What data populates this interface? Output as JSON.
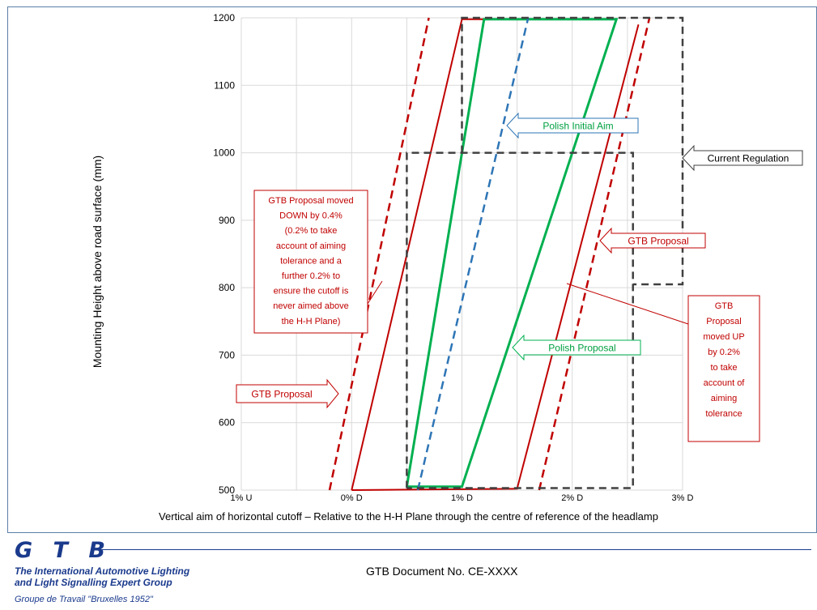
{
  "chart_data": {
    "type": "line",
    "xlabel": "Vertical aim of horizontal cutoff – Relative to the H-H Plane through the centre of reference of the headlamp",
    "ylabel": "Mounting Height above road surface (mm)",
    "xlim": [
      -1,
      3
    ],
    "ylim": [
      500,
      1200
    ],
    "grid": true,
    "x_ticks": [
      {
        "value": -1,
        "label": "1% U"
      },
      {
        "value": 0,
        "label": "0% D"
      },
      {
        "value": 1,
        "label": "1% D"
      },
      {
        "value": 2,
        "label": "2% D"
      },
      {
        "value": 3,
        "label": "3% D"
      }
    ],
    "y_ticks": [
      500,
      600,
      700,
      800,
      900,
      1000,
      1100,
      1200
    ],
    "series": [
      {
        "style": "solid",
        "color": "#c00000",
        "segments": [
          [
            [
              0.0,
              500
            ],
            [
              1.5,
              502
            ],
            [
              2.6,
              1190
            ]
          ],
          [
            [
              0.0,
              500
            ],
            [
              1.0,
              1198
            ],
            [
              2.4,
              1198
            ]
          ]
        ]
      },
      {
        "style": "dashed",
        "color": "#c00000",
        "segments": [
          [
            [
              -0.2,
              500
            ],
            [
              0.7,
              1200
            ]
          ],
          [
            [
              1.7,
              500
            ],
            [
              2.7,
              1200
            ]
          ]
        ]
      },
      {
        "style": "solid",
        "color": "#00b050",
        "segments": [
          [
            [
              0.5,
              505
            ],
            [
              1.0,
              505
            ],
            [
              2.4,
              1198
            ],
            [
              1.2,
              1198
            ],
            [
              0.5,
              505
            ]
          ]
        ]
      },
      {
        "style": "dashed",
        "color": "#2e75b6",
        "segments": [
          [
            [
              0.6,
              500
            ],
            [
              1.6,
              1200
            ]
          ]
        ]
      },
      {
        "style": "dashed",
        "color": "#404040",
        "segments": [
          [
            [
              0.5,
              503
            ],
            [
              0.5,
              1000
            ],
            [
              2.55,
              1000
            ],
            [
              2.55,
              503
            ],
            [
              0.5,
              503
            ]
          ],
          [
            [
              1.0,
              1000
            ],
            [
              1.0,
              1200
            ],
            [
              3.0,
              1200
            ],
            [
              3.0,
              805
            ],
            [
              2.55,
              805
            ]
          ]
        ]
      }
    ],
    "annotations": {
      "polish_initial_aim": "Polish Initial Aim",
      "current_regulation": "Current Regulation",
      "gtb_proposal_right": "GTB Proposal",
      "polish_proposal": "Polish Proposal",
      "gtb_proposal_left": "GTB Proposal",
      "moved_down": [
        "GTB Proposal moved",
        "DOWN by 0.4%",
        "(0.2% to take",
        "account of aiming",
        "tolerance and a",
        "further 0.2% to",
        "ensure the cutoff is",
        "never aimed above",
        "the H-H Plane)"
      ],
      "moved_up": [
        "GTB",
        "Proposal",
        "moved UP",
        "by 0.2%",
        "to take",
        "account of",
        "aiming",
        "tolerance"
      ]
    }
  },
  "footer": {
    "logo": "G T B",
    "org_line1": "The International Automotive Lighting",
    "org_line2": "and Light Signalling Expert Group",
    "org_sub": "Groupe de Travail \"Bruxelles 1952\"",
    "doc_number": "GTB Document No. CE-XXXX"
  }
}
